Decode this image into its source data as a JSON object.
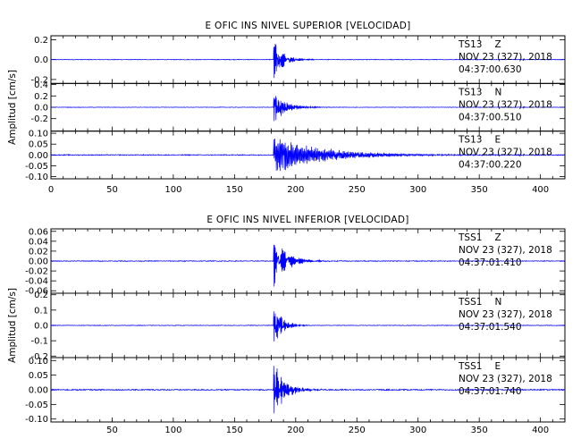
{
  "chart_data": [
    {
      "type": "line",
      "title": "E OFIC INS NIVEL SUPERIOR [VELOCIDAD]",
      "ylabel": "Amplitud [cm/s]",
      "xlim": [
        0,
        420
      ],
      "xticks": [
        "0",
        "50",
        "100",
        "150",
        "200",
        "250",
        "300",
        "350",
        "400"
      ],
      "trace_color": "#0000ff",
      "panels": [
        {
          "station": "TS13",
          "component": "Z",
          "date": "NOV 23 (327), 2018",
          "time": "04:37:00.630",
          "ylim": [
            -0.24,
            0.24
          ],
          "yticks": [
            0.2,
            0.0,
            -0.2
          ],
          "yticklabels": [
            "0.2",
            "0.0",
            "-0.2"
          ],
          "onset": 182,
          "peak": 0.2,
          "decay": 8,
          "noise": 0.003,
          "freq": 1.6
        },
        {
          "station": "TS13",
          "component": "N",
          "date": "NOV 23 (327), 2018",
          "time": "04:37:00.510",
          "ylim": [
            -0.42,
            0.42
          ],
          "yticks": [
            0.4,
            0.2,
            0.0,
            -0.2
          ],
          "yticklabels": [
            "0.4",
            "0.2",
            "0.0",
            "-0.2"
          ],
          "onset": 182,
          "peak": 0.3,
          "decay": 10,
          "noise": 0.004,
          "freq": 1.4
        },
        {
          "station": "TS13",
          "component": "E",
          "date": "NOV 23 (327), 2018",
          "time": "04:37:00.220",
          "ylim": [
            -0.11,
            0.11
          ],
          "yticks": [
            0.1,
            0.05,
            0.0,
            -0.05,
            -0.1
          ],
          "yticklabels": [
            "0.10",
            "0.05",
            "0.00",
            "-0.05",
            "-0.10"
          ],
          "onset": 182,
          "peak": 0.09,
          "decay": 40,
          "noise": 0.002,
          "freq": 1.2
        }
      ]
    },
    {
      "type": "line",
      "title": "E OFIC INS NIVEL INFERIOR [VELOCIDAD]",
      "ylabel": "Amplitud [cm/s]",
      "xlim": [
        0,
        420
      ],
      "xticks": [
        "50",
        "100",
        "150",
        "200",
        "250",
        "300",
        "350",
        "400"
      ],
      "trace_color": "#0000ff",
      "panels": [
        {
          "station": "TSS1",
          "component": "Z",
          "date": "NOV 23 (327), 2018",
          "time": "04:37:01.410",
          "ylim": [
            -0.065,
            0.065
          ],
          "yticks": [
            0.06,
            0.04,
            0.02,
            0.0,
            -0.02,
            -0.04,
            -0.06
          ],
          "yticklabels": [
            "0.06",
            "0.04",
            "0.02",
            "0.00",
            "-0.02",
            "-0.04",
            "-0.06"
          ],
          "onset": 182,
          "peak": 0.055,
          "decay": 10,
          "noise": 0.0008,
          "freq": 1.6
        },
        {
          "station": "TSS1",
          "component": "N",
          "date": "NOV 23 (327), 2018",
          "time": "04:37:01.540",
          "ylim": [
            -0.21,
            0.21
          ],
          "yticks": [
            0.2,
            0.1,
            0.0,
            -0.1,
            -0.2
          ],
          "yticklabels": [
            "0.2",
            "0.1",
            "0.0",
            "-0.1",
            "-0.2"
          ],
          "onset": 182,
          "peak": 0.15,
          "decay": 7,
          "noise": 0.002,
          "freq": 1.5
        },
        {
          "station": "TSS1",
          "component": "E",
          "date": "NOV 23 (327), 2018",
          "time": "04:37:01.740",
          "ylim": [
            -0.11,
            0.11
          ],
          "yticks": [
            0.1,
            0.05,
            0.0,
            -0.05,
            -0.1
          ],
          "yticklabels": [
            "0.10",
            "0.05",
            "0.00",
            "-0.05",
            "-0.10"
          ],
          "onset": 182,
          "peak": 0.1,
          "decay": 9,
          "noise": 0.002,
          "freq": 1.5
        }
      ]
    }
  ]
}
